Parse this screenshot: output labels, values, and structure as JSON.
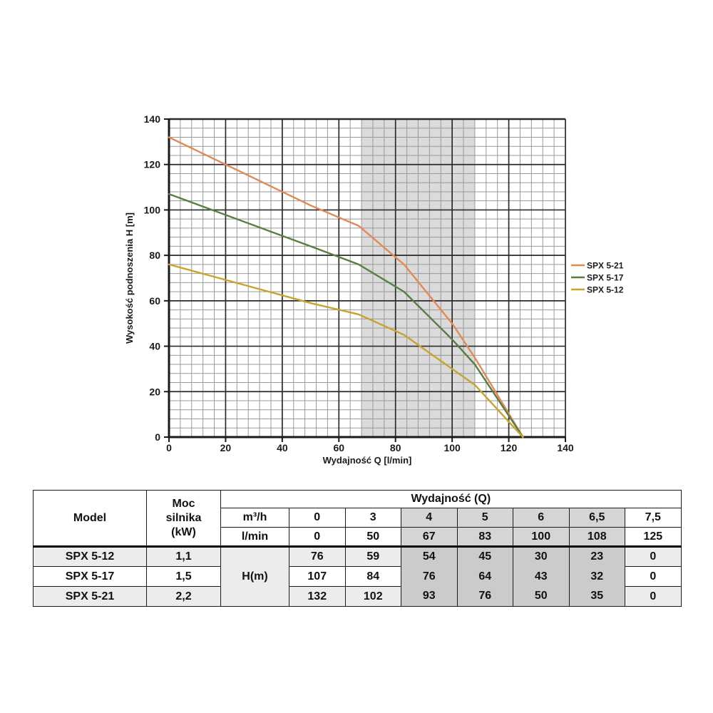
{
  "chart_data": {
    "type": "line",
    "title": "",
    "xlabel": "Wydajność Q [l/min]",
    "ylabel": "Wysokość podnoszenia H [m]",
    "xlim": [
      0,
      140
    ],
    "ylim": [
      0,
      140
    ],
    "x_ticks": [
      0,
      20,
      40,
      60,
      80,
      100,
      120,
      140
    ],
    "y_ticks": [
      0,
      20,
      40,
      60,
      80,
      100,
      120,
      140
    ],
    "minor_step": 4,
    "grid": true,
    "band_x": [
      68,
      108
    ],
    "band_color": "#dbdbdb",
    "legend_position": "right",
    "series": [
      {
        "name": "SPX 5-21",
        "color": "#e18a54",
        "x": [
          0,
          50,
          67,
          83,
          100,
          108,
          125
        ],
        "y": [
          132,
          102,
          93,
          76,
          50,
          35,
          0
        ]
      },
      {
        "name": "SPX 5-17",
        "color": "#567f42",
        "x": [
          0,
          50,
          67,
          83,
          100,
          108,
          125
        ],
        "y": [
          107,
          84,
          76,
          64,
          43,
          32,
          0
        ]
      },
      {
        "name": "SPX 5-12",
        "color": "#c8a32e",
        "x": [
          0,
          50,
          67,
          83,
          100,
          108,
          125
        ],
        "y": [
          76,
          59,
          54,
          45,
          30,
          23,
          0
        ]
      }
    ]
  },
  "table": {
    "headers": {
      "model": "Model",
      "power": "Moc\nsilnika\n(kW)",
      "flow_group": "Wydajność (Q)",
      "unit_m3h": "m³/h",
      "unit_lmin": "l/min",
      "head_label": "H(m)"
    },
    "flow_m3h": [
      "0",
      "3",
      "4",
      "5",
      "6",
      "6,5",
      "7,5"
    ],
    "flow_lmin": [
      "0",
      "50",
      "67",
      "83",
      "100",
      "108",
      "125"
    ],
    "rows": [
      {
        "model": "SPX 5-12",
        "power": "1,1",
        "values": [
          "76",
          "59",
          "54",
          "45",
          "30",
          "23",
          "0"
        ]
      },
      {
        "model": "SPX 5-17",
        "power": "1,5",
        "values": [
          "107",
          "84",
          "76",
          "64",
          "43",
          "32",
          "0"
        ]
      },
      {
        "model": "SPX 5-21",
        "power": "2,2",
        "values": [
          "132",
          "102",
          "93",
          "76",
          "50",
          "35",
          "0"
        ]
      }
    ]
  }
}
